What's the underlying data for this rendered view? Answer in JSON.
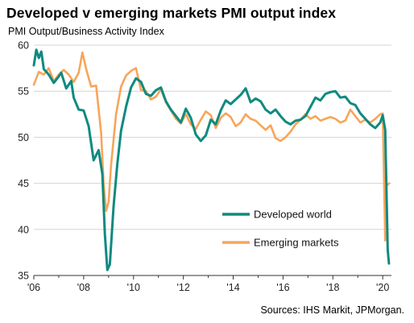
{
  "title": "Developed v emerging markets PMI output index",
  "source": "Sources: IHS Markit, JPMorgan.",
  "chart_data": {
    "type": "line",
    "title": "Developed v emerging markets PMI output index",
    "ylabel": "PMI Output/Business  Activity Index",
    "xlabel": "",
    "ylim": [
      35,
      60
    ],
    "xlim": [
      2006.0,
      2020.35
    ],
    "yticks": [
      35,
      40,
      45,
      50,
      55,
      60
    ],
    "xtick_labels": [
      "'06",
      "'08",
      "'10",
      "'12",
      "'14",
      "'16",
      "'18",
      "'20"
    ],
    "xtick_values": [
      2006,
      2008,
      2010,
      2012,
      2014,
      2016,
      2018,
      2020
    ],
    "grid": "horizontal",
    "legend_position": "lower-right",
    "series": [
      {
        "name": "Developed world",
        "color": "#0f8a80",
        "x": [
          2006.0,
          2006.1,
          2006.2,
          2006.3,
          2006.4,
          2006.6,
          2006.8,
          2007.0,
          2007.1,
          2007.3,
          2007.5,
          2007.6,
          2007.8,
          2008.0,
          2008.2,
          2008.4,
          2008.6,
          2008.75,
          2008.85,
          2008.95,
          2009.05,
          2009.2,
          2009.35,
          2009.5,
          2009.7,
          2009.9,
          2010.1,
          2010.3,
          2010.5,
          2010.7,
          2010.9,
          2011.1,
          2011.3,
          2011.5,
          2011.7,
          2011.9,
          2012.1,
          2012.3,
          2012.5,
          2012.7,
          2012.9,
          2013.1,
          2013.3,
          2013.5,
          2013.7,
          2013.9,
          2014.1,
          2014.3,
          2014.5,
          2014.7,
          2014.9,
          2015.1,
          2015.3,
          2015.5,
          2015.7,
          2015.9,
          2016.1,
          2016.3,
          2016.5,
          2016.7,
          2016.9,
          2017.1,
          2017.3,
          2017.5,
          2017.7,
          2017.9,
          2018.1,
          2018.3,
          2018.5,
          2018.7,
          2018.9,
          2019.1,
          2019.3,
          2019.5,
          2019.7,
          2019.9,
          2020.0,
          2020.1,
          2020.2,
          2020.25
        ],
        "values": [
          57.8,
          59.5,
          58.6,
          59.3,
          57.4,
          56.8,
          55.9,
          56.6,
          57.0,
          55.3,
          56.1,
          54.3,
          53.0,
          52.9,
          51.2,
          47.5,
          48.6,
          46.0,
          39.5,
          35.6,
          36.2,
          42.5,
          47.1,
          50.7,
          53.3,
          55.4,
          56.4,
          56.0,
          54.7,
          54.5,
          55.1,
          55.4,
          53.9,
          53.0,
          52.3,
          51.6,
          53.1,
          52.1,
          50.3,
          49.6,
          50.2,
          51.9,
          51.4,
          52.9,
          54.0,
          53.6,
          54.1,
          54.6,
          55.3,
          53.8,
          54.2,
          53.9,
          53.0,
          52.6,
          53.0,
          52.3,
          51.7,
          51.4,
          51.8,
          51.9,
          52.3,
          53.3,
          54.3,
          54.0,
          54.7,
          54.9,
          55.0,
          54.3,
          54.4,
          53.7,
          53.5,
          52.6,
          52.0,
          51.4,
          51.0,
          51.6,
          52.4,
          50.8,
          37.8,
          36.3
        ]
      },
      {
        "name": "Emerging  markets",
        "color": "#f7a55a",
        "x": [
          2006.0,
          2006.2,
          2006.4,
          2006.6,
          2006.8,
          2007.0,
          2007.2,
          2007.4,
          2007.6,
          2007.8,
          2007.95,
          2008.1,
          2008.3,
          2008.5,
          2008.7,
          2008.8,
          2008.9,
          2009.0,
          2009.1,
          2009.3,
          2009.5,
          2009.7,
          2009.9,
          2010.1,
          2010.3,
          2010.5,
          2010.7,
          2010.9,
          2011.1,
          2011.3,
          2011.5,
          2011.7,
          2011.9,
          2012.1,
          2012.3,
          2012.5,
          2012.7,
          2012.9,
          2013.1,
          2013.3,
          2013.5,
          2013.7,
          2013.9,
          2014.1,
          2014.3,
          2014.5,
          2014.7,
          2014.9,
          2015.1,
          2015.3,
          2015.5,
          2015.7,
          2015.9,
          2016.1,
          2016.3,
          2016.5,
          2016.7,
          2016.9,
          2017.1,
          2017.3,
          2017.5,
          2017.7,
          2017.9,
          2018.1,
          2018.3,
          2018.5,
          2018.7,
          2018.9,
          2019.1,
          2019.3,
          2019.5,
          2019.7,
          2019.9,
          2020.0,
          2020.1,
          2020.15,
          2020.25
        ],
        "values": [
          55.7,
          57.1,
          56.8,
          57.5,
          56.1,
          56.8,
          57.3,
          56.8,
          56.0,
          57.0,
          59.2,
          57.4,
          55.5,
          55.6,
          50.5,
          45.0,
          42.0,
          43.0,
          47.0,
          52.5,
          55.5,
          56.7,
          57.2,
          57.5,
          55.1,
          55.0,
          54.1,
          54.4,
          55.2,
          53.8,
          52.9,
          52.0,
          51.5,
          52.5,
          51.4,
          50.9,
          51.9,
          52.8,
          52.4,
          51.0,
          52.1,
          52.6,
          52.2,
          51.2,
          51.6,
          52.5,
          52.0,
          51.8,
          51.3,
          50.8,
          51.3,
          49.9,
          49.6,
          50.0,
          50.6,
          51.4,
          51.9,
          52.5,
          52.0,
          52.3,
          51.8,
          52.0,
          52.2,
          52.0,
          51.6,
          51.8,
          53.0,
          52.3,
          51.6,
          51.9,
          51.6,
          52.0,
          52.5,
          52.6,
          38.8,
          44.7,
          45.0
        ]
      }
    ]
  }
}
